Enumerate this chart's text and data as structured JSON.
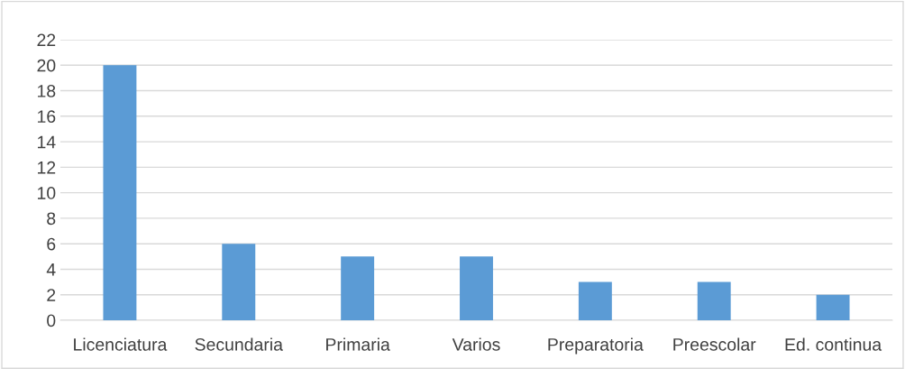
{
  "chart_data": {
    "type": "bar",
    "categories": [
      "Licenciatura",
      "Secundaria",
      "Primaria",
      "Varios",
      "Preparatoria",
      "Preescolar",
      "Ed. continua"
    ],
    "values": [
      20,
      6,
      5,
      5,
      3,
      3,
      2
    ],
    "color": "#5b9bd5",
    "ylim": [
      0,
      22
    ],
    "yticks": [
      0,
      2,
      4,
      6,
      8,
      10,
      12,
      14,
      16,
      18,
      20,
      22
    ],
    "grid": "y",
    "legend": false
  }
}
